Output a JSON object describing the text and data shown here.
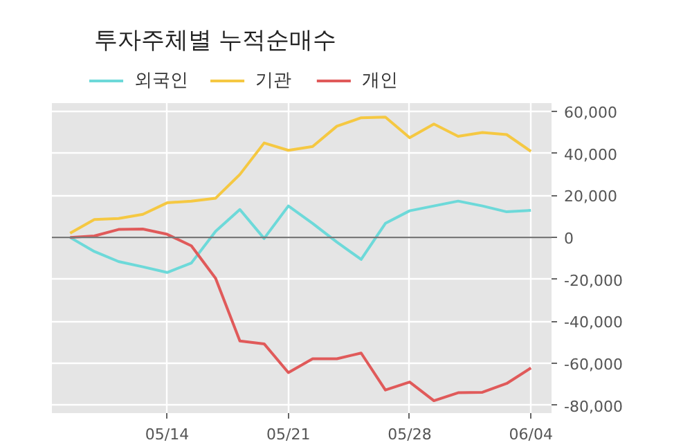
{
  "chart_data": {
    "type": "line",
    "title": "투자주체별 누적순매수",
    "categories": [
      null,
      null,
      null,
      null,
      "05/14",
      null,
      null,
      null,
      null,
      "05/21",
      null,
      null,
      null,
      null,
      "05/28",
      null,
      null,
      null,
      null,
      "06/04"
    ],
    "ylim": [
      -83700,
      64000
    ],
    "yticks": [
      {
        "value": -80000,
        "label": "-80,000"
      },
      {
        "value": -60000,
        "label": "-60,000"
      },
      {
        "value": -40000,
        "label": "-40,000"
      },
      {
        "value": -20000,
        "label": "-20,000"
      },
      0,
      {
        "value": 20000,
        "label": "20,000"
      },
      {
        "value": 40000,
        "label": "40,000"
      },
      {
        "value": 60000,
        "label": "60,000"
      }
    ],
    "series": [
      {
        "name": "외국인",
        "color": "#6dd9d9",
        "values": [
          0,
          -6700,
          -11500,
          -14000,
          -16700,
          -12200,
          2900,
          13300,
          -500,
          15000,
          6700,
          -2200,
          -10500,
          6700,
          12700,
          15000,
          17300,
          15000,
          12200,
          12900
        ]
      },
      {
        "name": "기관",
        "color": "#f5c842",
        "values": [
          2000,
          8500,
          9000,
          11000,
          16500,
          17300,
          18700,
          30000,
          45000,
          41500,
          43300,
          53000,
          57000,
          57300,
          47500,
          54000,
          48200,
          50000,
          49000,
          41000
        ]
      },
      {
        "name": "개인",
        "color": "#e05a5a",
        "values": [
          0,
          700,
          3800,
          4000,
          1500,
          -4000,
          -19500,
          -49300,
          -50700,
          -64400,
          -57800,
          -57800,
          -55100,
          -72700,
          -68900,
          -77800,
          -74000,
          -73800,
          -69600,
          -62200
        ]
      }
    ],
    "ref_lines": [
      {
        "axis": "y",
        "value": 0,
        "color": "#777777"
      }
    ],
    "grid": true,
    "legend": "top left"
  }
}
